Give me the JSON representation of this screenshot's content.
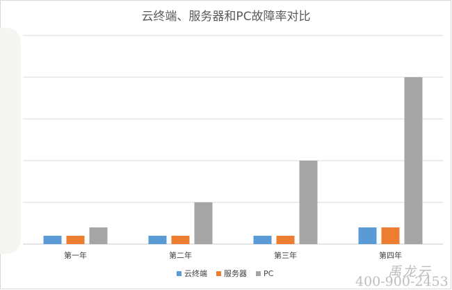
{
  "chart_data": {
    "type": "bar",
    "title": "云终端、服务器和PC故障率对比",
    "categories": [
      "第一年",
      "第二年",
      "第三年",
      "第四年"
    ],
    "series": [
      {
        "name": "云终端",
        "color": "#5b9bd5",
        "values": [
          1,
          1,
          1,
          2
        ]
      },
      {
        "name": "服务器",
        "color": "#ed7d31",
        "values": [
          1,
          1,
          1,
          2
        ]
      },
      {
        "name": "PC",
        "color": "#a5a5a5",
        "values": [
          2,
          5,
          10,
          20
        ]
      }
    ],
    "ylim": [
      0,
      25
    ],
    "grid": true,
    "legend": "bottom"
  },
  "watermark": {
    "logo_text": "禹龙云",
    "phone": "400-900-2453"
  }
}
